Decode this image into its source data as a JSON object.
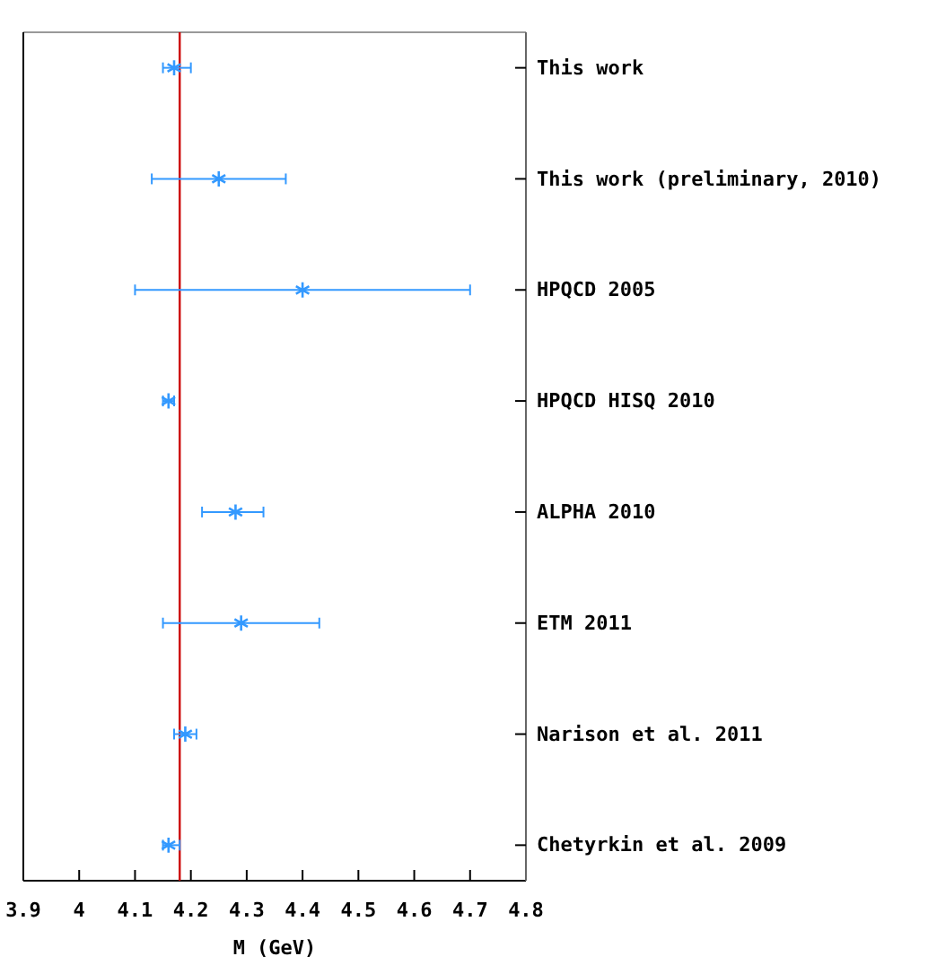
{
  "chart_data": {
    "type": "scatter",
    "orientation": "horizontal",
    "xlabel": "M (GeV)",
    "categories": [
      "This work",
      "This work (preliminary, 2010)",
      "HPQCD 2005",
      "HPQCD HISQ 2010",
      "ALPHA 2010",
      "ETM 2011",
      "Narison et al. 2011",
      "Chetyrkin et al. 2009"
    ],
    "series": [
      {
        "color": "#3399ff",
        "values": [
          4.17,
          4.25,
          4.4,
          4.16,
          4.28,
          4.29,
          4.19,
          4.16
        ],
        "errors": [
          [
            4.15,
            4.2
          ],
          [
            4.13,
            4.37
          ],
          [
            4.1,
            4.7
          ],
          [
            4.15,
            4.17
          ],
          [
            4.22,
            4.33
          ],
          [
            4.15,
            4.43
          ],
          [
            4.17,
            4.21
          ],
          [
            4.15,
            4.18
          ]
        ]
      }
    ],
    "xlim": [
      3.9,
      4.8
    ],
    "xticks": [
      {
        "value": 3.9,
        "label": "3.9"
      },
      {
        "value": 4,
        "label": "4"
      },
      {
        "value": 4.1,
        "label": "4.1"
      },
      {
        "value": 4.2,
        "label": "4.2"
      },
      {
        "value": 4.3,
        "label": "4.3"
      },
      {
        "value": 4.4,
        "label": "4.4"
      },
      {
        "value": 4.5,
        "label": "4.5"
      },
      {
        "value": 4.6,
        "label": "4.6"
      },
      {
        "value": 4.7,
        "label": "4.7"
      },
      {
        "value": 4.8,
        "label": "4.8"
      }
    ],
    "ref_lines": [
      {
        "axis": "x",
        "value": 4.18,
        "color": "#cc0000"
      }
    ],
    "marker": "cross"
  }
}
